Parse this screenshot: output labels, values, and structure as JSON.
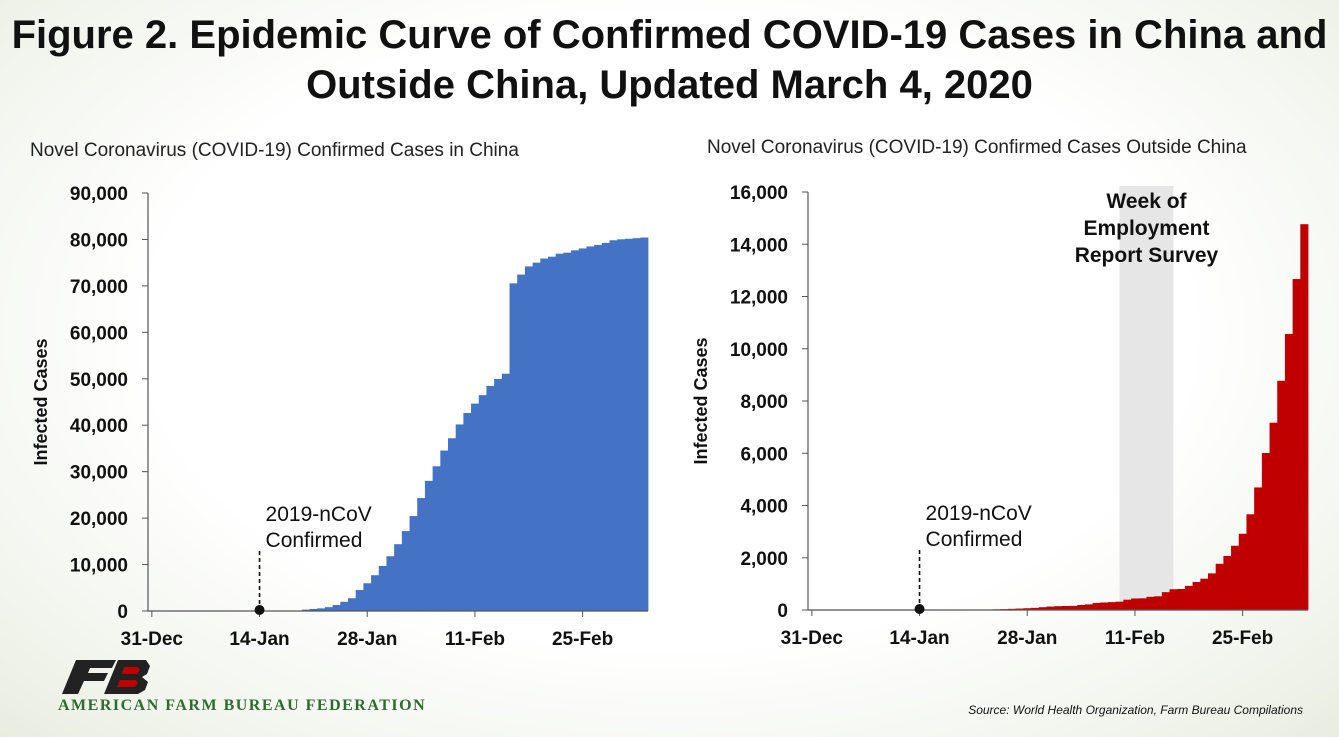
{
  "title": "Figure 2. Epidemic Curve of Confirmed COVID-19 Cases in China and Outside China, Updated March 4, 2020",
  "source": "Source: World Health Organization, Farm Bureau Compilations",
  "org_name": "AMERICAN FARM BUREAU FEDERATION",
  "logo_icon": "farm-bureau-fb-logo",
  "chart_data": [
    {
      "type": "bar",
      "title": "Novel Coronavirus (COVID-19) Confirmed Cases in China",
      "ylabel": "Infected Cases",
      "ylim": [
        0,
        90000
      ],
      "yticks": [
        "0",
        "10,000",
        "20,000",
        "30,000",
        "40,000",
        "50,000",
        "60,000",
        "70,000",
        "80,000",
        "90,000"
      ],
      "xticks": [
        "31-Dec",
        "14-Jan",
        "28-Jan",
        "11-Feb",
        "25-Feb"
      ],
      "x_start": "2019-12-31",
      "x_end": "2020-03-04",
      "bar_color": "#4472c4",
      "annotation": {
        "lines": [
          "2019-nCoV",
          "Confirmed"
        ],
        "date": "2020-01-14",
        "value": 0
      },
      "bars": [
        {
          "date": "2020-01-20",
          "value": 291
        },
        {
          "date": "2020-01-21",
          "value": 440
        },
        {
          "date": "2020-01-22",
          "value": 571
        },
        {
          "date": "2020-01-23",
          "value": 830
        },
        {
          "date": "2020-01-24",
          "value": 1287
        },
        {
          "date": "2020-01-25",
          "value": 1975
        },
        {
          "date": "2020-01-26",
          "value": 2744
        },
        {
          "date": "2020-01-27",
          "value": 4515
        },
        {
          "date": "2020-01-28",
          "value": 5974
        },
        {
          "date": "2020-01-29",
          "value": 7711
        },
        {
          "date": "2020-01-30",
          "value": 9692
        },
        {
          "date": "2020-01-31",
          "value": 11791
        },
        {
          "date": "2020-02-01",
          "value": 14380
        },
        {
          "date": "2020-02-02",
          "value": 17205
        },
        {
          "date": "2020-02-03",
          "value": 20438
        },
        {
          "date": "2020-02-04",
          "value": 24324
        },
        {
          "date": "2020-02-05",
          "value": 28018
        },
        {
          "date": "2020-02-06",
          "value": 31161
        },
        {
          "date": "2020-02-07",
          "value": 34546
        },
        {
          "date": "2020-02-08",
          "value": 37198
        },
        {
          "date": "2020-02-09",
          "value": 40171
        },
        {
          "date": "2020-02-10",
          "value": 42638
        },
        {
          "date": "2020-02-11",
          "value": 44653
        },
        {
          "date": "2020-02-12",
          "value": 46472
        },
        {
          "date": "2020-02-13",
          "value": 48467
        },
        {
          "date": "2020-02-14",
          "value": 49970
        },
        {
          "date": "2020-02-15",
          "value": 51091
        },
        {
          "date": "2020-02-16",
          "value": 70548
        },
        {
          "date": "2020-02-17",
          "value": 72436
        },
        {
          "date": "2020-02-18",
          "value": 74185
        },
        {
          "date": "2020-02-19",
          "value": 75002
        },
        {
          "date": "2020-02-20",
          "value": 75891
        },
        {
          "date": "2020-02-21",
          "value": 76288
        },
        {
          "date": "2020-02-22",
          "value": 76936
        },
        {
          "date": "2020-02-23",
          "value": 77150
        },
        {
          "date": "2020-02-24",
          "value": 77658
        },
        {
          "date": "2020-02-25",
          "value": 78064
        },
        {
          "date": "2020-02-26",
          "value": 78497
        },
        {
          "date": "2020-02-27",
          "value": 78824
        },
        {
          "date": "2020-02-28",
          "value": 79251
        },
        {
          "date": "2020-02-29",
          "value": 79824
        },
        {
          "date": "2020-03-01",
          "value": 80026
        },
        {
          "date": "2020-03-02",
          "value": 80151
        },
        {
          "date": "2020-03-03",
          "value": 80270
        },
        {
          "date": "2020-03-04",
          "value": 80409
        }
      ]
    },
    {
      "type": "bar",
      "title": "Novel Coronavirus (COVID-19) Confirmed Cases Outside China",
      "ylabel": "Infected Cases",
      "ylim": [
        0,
        16000
      ],
      "yticks": [
        "0",
        "2,000",
        "4,000",
        "6,000",
        "8,000",
        "10,000",
        "12,000",
        "14,000",
        "16,000"
      ],
      "xticks": [
        "31-Dec",
        "14-Jan",
        "28-Jan",
        "11-Feb",
        "25-Feb"
      ],
      "x_start": "2019-12-31",
      "x_end": "2020-03-04",
      "bar_color": "#c00000",
      "annotation": {
        "lines": [
          "2019-nCoV",
          "Confirmed"
        ],
        "date": "2020-01-14",
        "value": 0
      },
      "highlight": {
        "lines": [
          "Week of",
          "Employment",
          "Report Survey"
        ],
        "start": "2020-02-09",
        "end": "2020-02-16",
        "color": "#e6e6e6"
      },
      "bars": [
        {
          "date": "2020-01-20",
          "value": 4
        },
        {
          "date": "2020-01-21",
          "value": 6
        },
        {
          "date": "2020-01-22",
          "value": 10
        },
        {
          "date": "2020-01-23",
          "value": 16
        },
        {
          "date": "2020-01-24",
          "value": 25
        },
        {
          "date": "2020-01-25",
          "value": 34
        },
        {
          "date": "2020-01-26",
          "value": 45
        },
        {
          "date": "2020-01-27",
          "value": 56
        },
        {
          "date": "2020-01-28",
          "value": 68
        },
        {
          "date": "2020-01-29",
          "value": 82
        },
        {
          "date": "2020-01-30",
          "value": 106
        },
        {
          "date": "2020-01-31",
          "value": 132
        },
        {
          "date": "2020-02-01",
          "value": 146
        },
        {
          "date": "2020-02-02",
          "value": 153
        },
        {
          "date": "2020-02-03",
          "value": 159
        },
        {
          "date": "2020-02-04",
          "value": 191
        },
        {
          "date": "2020-02-05",
          "value": 216
        },
        {
          "date": "2020-02-06",
          "value": 270
        },
        {
          "date": "2020-02-07",
          "value": 288
        },
        {
          "date": "2020-02-08",
          "value": 302
        },
        {
          "date": "2020-02-09",
          "value": 319
        },
        {
          "date": "2020-02-10",
          "value": 395
        },
        {
          "date": "2020-02-11",
          "value": 441
        },
        {
          "date": "2020-02-12",
          "value": 447
        },
        {
          "date": "2020-02-13",
          "value": 505
        },
        {
          "date": "2020-02-14",
          "value": 526
        },
        {
          "date": "2020-02-15",
          "value": 683
        },
        {
          "date": "2020-02-16",
          "value": 794
        },
        {
          "date": "2020-02-17",
          "value": 804
        },
        {
          "date": "2020-02-18",
          "value": 924
        },
        {
          "date": "2020-02-19",
          "value": 1073
        },
        {
          "date": "2020-02-20",
          "value": 1200
        },
        {
          "date": "2020-02-21",
          "value": 1402
        },
        {
          "date": "2020-02-22",
          "value": 1769
        },
        {
          "date": "2020-02-23",
          "value": 2069
        },
        {
          "date": "2020-02-24",
          "value": 2459
        },
        {
          "date": "2020-02-25",
          "value": 2918
        },
        {
          "date": "2020-02-26",
          "value": 3664
        },
        {
          "date": "2020-02-27",
          "value": 4691
        },
        {
          "date": "2020-02-28",
          "value": 6009
        },
        {
          "date": "2020-02-29",
          "value": 7169
        },
        {
          "date": "2020-03-01",
          "value": 8774
        },
        {
          "date": "2020-03-02",
          "value": 10566
        },
        {
          "date": "2020-03-03",
          "value": 12668
        },
        {
          "date": "2020-03-04",
          "value": 14768
        }
      ]
    }
  ]
}
